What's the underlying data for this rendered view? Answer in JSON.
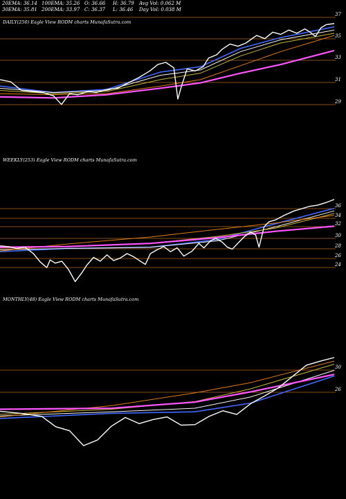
{
  "header": {
    "row1": [
      "20EMA: 36.14",
      "100EMA: 35.26",
      "O: 36.66",
      "H: 36.79",
      "Avg Vol: 0.062  M"
    ],
    "row2": [
      "30EMA: 35.81",
      "200EMA: 33.97",
      "C: 36.37",
      "L: 36.46",
      "Day Vol: 0.038  M"
    ]
  },
  "chart_data": [
    {
      "type": "line",
      "panel_label": "DAILY(250) Eagle   View  RODM charts MunafaSutra.com",
      "yticks": [
        37,
        35,
        33,
        31,
        29
      ],
      "ylim": [
        28.3,
        37.3
      ],
      "n": 250,
      "price": [
        [
          0,
          31.2
        ],
        [
          8,
          31.0
        ],
        [
          16,
          30.2
        ],
        [
          24,
          30.1
        ],
        [
          32,
          30.0
        ],
        [
          40,
          29.7
        ],
        [
          46,
          28.9
        ],
        [
          52,
          29.9
        ],
        [
          58,
          29.8
        ],
        [
          66,
          30.1
        ],
        [
          72,
          30.0
        ],
        [
          80,
          30.3
        ],
        [
          88,
          30.4
        ],
        [
          96,
          30.9
        ],
        [
          104,
          31.4
        ],
        [
          112,
          32.0
        ],
        [
          118,
          32.6
        ],
        [
          124,
          32.8
        ],
        [
          130,
          32.3
        ],
        [
          133,
          29.4
        ],
        [
          136,
          30.7
        ],
        [
          140,
          32.2
        ],
        [
          146,
          32.0
        ],
        [
          152,
          32.4
        ],
        [
          156,
          33.2
        ],
        [
          162,
          33.5
        ],
        [
          166,
          34.0
        ],
        [
          172,
          34.5
        ],
        [
          178,
          34.3
        ],
        [
          184,
          34.6
        ],
        [
          192,
          35.3
        ],
        [
          198,
          35.0
        ],
        [
          204,
          35.6
        ],
        [
          210,
          35.4
        ],
        [
          216,
          35.8
        ],
        [
          222,
          35.5
        ],
        [
          228,
          35.9
        ],
        [
          232,
          35.6
        ],
        [
          236,
          35.2
        ],
        [
          240,
          36.0
        ],
        [
          244,
          36.3
        ],
        [
          250,
          36.4
        ]
      ],
      "series": [
        {
          "color": "#4169ff",
          "values": [
            [
              0,
              30.6
            ],
            [
              40,
              30.0
            ],
            [
              80,
              30.3
            ],
            [
              120,
              31.9
            ],
            [
              150,
              32.4
            ],
            [
              180,
              34.1
            ],
            [
              210,
              35.1
            ],
            [
              250,
              36.1
            ]
          ]
        },
        {
          "color": "#f5f5f5",
          "values": [
            [
              0,
              30.4
            ],
            [
              40,
              30.0
            ],
            [
              80,
              30.2
            ],
            [
              120,
              31.6
            ],
            [
              150,
              32.1
            ],
            [
              180,
              33.8
            ],
            [
              210,
              34.9
            ],
            [
              250,
              35.8
            ]
          ]
        },
        {
          "color": "#c8b43c",
          "values": [
            [
              0,
              30.2
            ],
            [
              40,
              29.9
            ],
            [
              80,
              30.1
            ],
            [
              120,
              31.2
            ],
            [
              150,
              31.8
            ],
            [
              180,
              33.4
            ],
            [
              210,
              34.6
            ],
            [
              250,
              35.5
            ]
          ]
        },
        {
          "color": "#e07b1a",
          "values": [
            [
              0,
              29.9
            ],
            [
              40,
              29.8
            ],
            [
              80,
              29.9
            ],
            [
              120,
              30.6
            ],
            [
              150,
              31.2
            ],
            [
              180,
              32.5
            ],
            [
              210,
              33.8
            ],
            [
              250,
              35.3
            ]
          ]
        },
        {
          "color": "#ff55ff",
          "values": [
            [
              0,
              29.6
            ],
            [
              40,
              29.5
            ],
            [
              80,
              29.8
            ],
            [
              120,
              30.4
            ],
            [
              150,
              30.9
            ],
            [
              180,
              31.8
            ],
            [
              210,
              32.6
            ],
            [
              250,
              33.9
            ]
          ]
        }
      ]
    },
    {
      "type": "line",
      "panel_label": "WEEKLY(253) Eagle   View  RODM charts MunafaSutra.com",
      "yticks": [
        36,
        34,
        32,
        30,
        28,
        26,
        24
      ],
      "ylim": [
        23.2,
        36.8
      ],
      "n": 253,
      "price": [
        [
          0,
          29.2
        ],
        [
          10,
          29.1
        ],
        [
          20,
          28.8
        ],
        [
          30,
          29.0
        ],
        [
          40,
          28.0
        ],
        [
          48,
          26.7
        ],
        [
          56,
          25.8
        ],
        [
          60,
          27.0
        ],
        [
          66,
          26.5
        ],
        [
          74,
          26.8
        ],
        [
          82,
          25.5
        ],
        [
          90,
          23.6
        ],
        [
          98,
          25.0
        ],
        [
          104,
          26.2
        ],
        [
          112,
          27.4
        ],
        [
          120,
          26.8
        ],
        [
          128,
          27.8
        ],
        [
          136,
          26.9
        ],
        [
          144,
          27.3
        ],
        [
          152,
          28.0
        ],
        [
          160,
          27.5
        ],
        [
          168,
          26.8
        ],
        [
          174,
          26.3
        ],
        [
          180,
          28.0
        ],
        [
          188,
          28.6
        ],
        [
          196,
          29.1
        ],
        [
          204,
          28.3
        ],
        [
          212,
          28.9
        ],
        [
          220,
          27.6
        ],
        [
          230,
          28.4
        ],
        [
          238,
          29.6
        ],
        [
          244,
          28.9
        ],
        [
          252,
          30.0
        ],
        [
          258,
          30.4
        ],
        [
          266,
          29.8
        ],
        [
          272,
          29.0
        ],
        [
          278,
          28.7
        ],
        [
          286,
          29.8
        ],
        [
          292,
          30.6
        ],
        [
          300,
          31.4
        ],
        [
          306,
          30.9
        ],
        [
          310,
          29.0
        ],
        [
          316,
          32.2
        ],
        [
          322,
          33.0
        ],
        [
          330,
          33.3
        ],
        [
          340,
          34.0
        ],
        [
          352,
          34.7
        ],
        [
          360,
          35.0
        ],
        [
          370,
          35.4
        ],
        [
          380,
          35.6
        ],
        [
          390,
          36.0
        ],
        [
          400,
          36.5
        ]
      ],
      "series": [
        {
          "color": "#4169ff",
          "values": [
            [
              0,
              28.3
            ],
            [
              80,
              28.8
            ],
            [
              180,
              29.0
            ],
            [
              260,
              30.2
            ],
            [
              330,
              32.7
            ],
            [
              400,
              35.1
            ]
          ]
        },
        {
          "color": "#f5f5f5",
          "values": [
            [
              0,
              28.6
            ],
            [
              80,
              28.8
            ],
            [
              180,
              29.0
            ],
            [
              260,
              30.0
            ],
            [
              330,
              32.2
            ],
            [
              400,
              34.7
            ]
          ]
        },
        {
          "color": "#c8b43c",
          "values": [
            [
              0,
              28.9
            ],
            [
              80,
              29.1
            ],
            [
              180,
              29.6
            ],
            [
              260,
              30.7
            ],
            [
              330,
              32.0
            ],
            [
              400,
              34.3
            ]
          ]
        },
        {
          "color": "#e07b1a",
          "values": [
            [
              0,
              28.4
            ],
            [
              80,
              29.5
            ],
            [
              180,
              30.6
            ],
            [
              260,
              31.8
            ],
            [
              330,
              32.8
            ],
            [
              400,
              34.0
            ]
          ]
        },
        {
          "color": "#ff55ff",
          "values": [
            [
              0,
              29.0
            ],
            [
              80,
              29.1
            ],
            [
              180,
              29.6
            ],
            [
              260,
              30.5
            ],
            [
              330,
              31.5
            ],
            [
              400,
              32.3
            ]
          ]
        }
      ]
    },
    {
      "type": "line",
      "panel_label": "MONTHLY(48) Eagle   View  RODM charts MunafaSutra.com",
      "yticks": [
        30,
        26
      ],
      "ylim": [
        20,
        43
      ],
      "n": 48,
      "price": [
        [
          0,
          29.0
        ],
        [
          3,
          28.6
        ],
        [
          6,
          28.0
        ],
        [
          8,
          26.0
        ],
        [
          10,
          25.2
        ],
        [
          12,
          22.3
        ],
        [
          14,
          23.4
        ],
        [
          16,
          26.1
        ],
        [
          18,
          27.8
        ],
        [
          20,
          26.6
        ],
        [
          22,
          27.4
        ],
        [
          24,
          27.9
        ],
        [
          26,
          26.3
        ],
        [
          28,
          26.4
        ],
        [
          30,
          28.0
        ],
        [
          32,
          29.1
        ],
        [
          34,
          28.4
        ],
        [
          36,
          30.5
        ],
        [
          38,
          32.0
        ],
        [
          40,
          33.6
        ],
        [
          42,
          35.8
        ],
        [
          44,
          38.0
        ],
        [
          46,
          38.8
        ],
        [
          48,
          39.5
        ]
      ],
      "series": [
        {
          "color": "#4169ff",
          "values": [
            [
              0,
              27.6
            ],
            [
              16,
              28.6
            ],
            [
              28,
              28.9
            ],
            [
              36,
              30.6
            ],
            [
              48,
              35.9
            ]
          ]
        },
        {
          "color": "#f5f5f5",
          "values": [
            [
              0,
              28.1
            ],
            [
              16,
              28.9
            ],
            [
              28,
              29.6
            ],
            [
              36,
              31.8
            ],
            [
              48,
              37.0
            ]
          ]
        },
        {
          "color": "#c8b43c",
          "values": [
            [
              0,
              28.4
            ],
            [
              16,
              29.4
            ],
            [
              28,
              30.9
            ],
            [
              36,
              33.4
            ],
            [
              48,
              38.2
            ]
          ]
        },
        {
          "color": "#e07b1a",
          "values": [
            [
              0,
              27.9
            ],
            [
              16,
              30.1
            ],
            [
              28,
              32.6
            ],
            [
              36,
              34.6
            ],
            [
              48,
              38.8
            ]
          ]
        },
        {
          "color": "#ff55ff",
          "values": [
            [
              0,
              29.4
            ],
            [
              16,
              29.6
            ],
            [
              28,
              30.8
            ],
            [
              36,
              32.8
            ],
            [
              48,
              36.2
            ]
          ]
        }
      ]
    }
  ]
}
